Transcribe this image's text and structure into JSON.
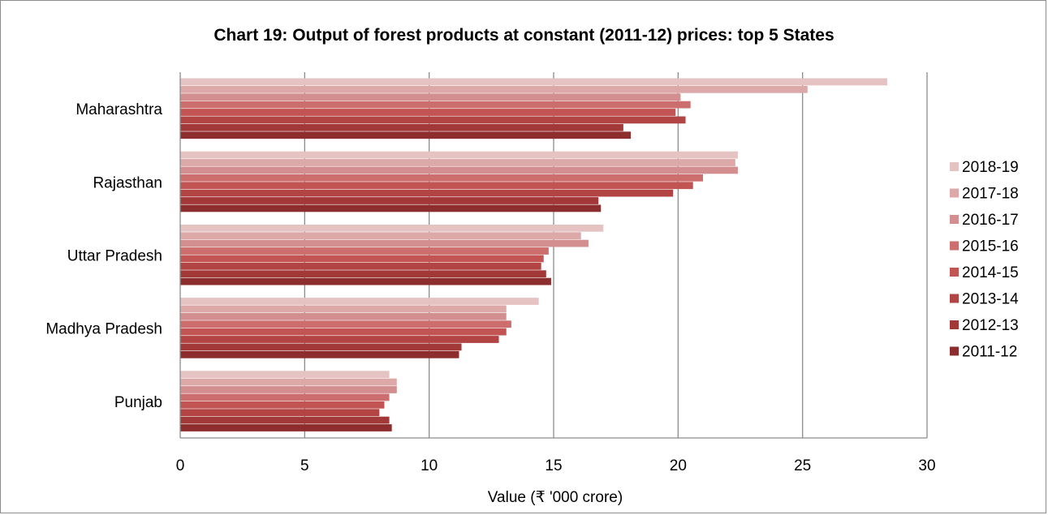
{
  "chart_data": {
    "type": "bar",
    "orientation": "horizontal",
    "title": "Chart 19: Output of forest products at constant (2011-12) prices: top 5 States",
    "xlabel": "Value (₹ '000 crore)",
    "ylabel": "",
    "xlim": [
      0,
      30
    ],
    "x_ticks": [
      "0",
      "5",
      "10",
      "15",
      "20",
      "25",
      "30"
    ],
    "grid": "vertical",
    "legend_position": "right",
    "categories": [
      "Maharashtra",
      "Rajasthan",
      "Uttar Pradesh",
      "Madhya Pradesh",
      "Punjab"
    ],
    "series": [
      {
        "name": "2018-19",
        "color": "#e6c3c3",
        "values": [
          28.4,
          22.4,
          17.0,
          14.4,
          8.4
        ]
      },
      {
        "name": "2017-18",
        "color": "#dda8a8",
        "values": [
          25.2,
          22.3,
          16.1,
          13.1,
          8.7
        ]
      },
      {
        "name": "2016-17",
        "color": "#d38f8f",
        "values": [
          20.1,
          22.4,
          16.4,
          13.1,
          8.7
        ]
      },
      {
        "name": "2015-16",
        "color": "#cc6e6e",
        "values": [
          20.5,
          21.0,
          14.8,
          13.3,
          8.4
        ]
      },
      {
        "name": "2014-15",
        "color": "#c25454",
        "values": [
          19.9,
          20.6,
          14.6,
          13.1,
          8.2
        ]
      },
      {
        "name": "2013-14",
        "color": "#b34444",
        "values": [
          20.3,
          19.8,
          14.5,
          12.8,
          8.0
        ]
      },
      {
        "name": "2012-13",
        "color": "#a33838",
        "values": [
          17.8,
          16.8,
          14.7,
          11.3,
          8.4
        ]
      },
      {
        "name": "2011-12",
        "color": "#8e2d2d",
        "values": [
          18.1,
          16.9,
          14.9,
          11.2,
          8.5
        ]
      }
    ]
  }
}
